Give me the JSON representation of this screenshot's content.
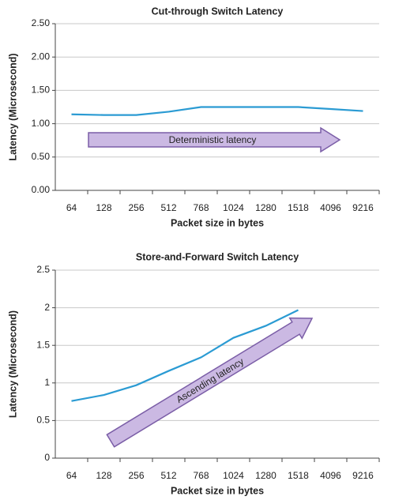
{
  "chart_data": [
    {
      "type": "line",
      "title": "Cut-through Switch Latency",
      "x_label": "Packet size in bytes",
      "y_label": "Latency (Microsecond)",
      "annotation": "Deterministic latency",
      "categories": [
        "64",
        "128",
        "256",
        "512",
        "768",
        "1024",
        "1280",
        "1518",
        "4096",
        "9216"
      ],
      "series": [
        {
          "name": "Cut-through",
          "color": "#2b9bd3",
          "values": [
            1.14,
            1.13,
            1.13,
            1.18,
            1.25,
            1.25,
            1.25,
            1.25,
            1.22,
            1.19
          ]
        }
      ],
      "ylim": [
        0,
        2.5
      ],
      "yticks": [
        {
          "value": 0,
          "label": "0.00"
        },
        {
          "value": 0.5,
          "label": "0.50"
        },
        {
          "value": 1,
          "label": "1.00"
        },
        {
          "value": 1.5,
          "label": "1.50"
        },
        {
          "value": 2,
          "label": "2.00"
        },
        {
          "value": 2.5,
          "label": "2.50"
        }
      ],
      "grid": true
    },
    {
      "type": "line",
      "title": "Store-and-Forward Switch Latency",
      "x_label": "Packet size in bytes",
      "y_label": "Latency (Microsecond)",
      "annotation": "Ascending latency",
      "categories": [
        "64",
        "128",
        "256",
        "512",
        "768",
        "1024",
        "1280",
        "1518",
        "4096",
        "9216"
      ],
      "series": [
        {
          "name": "Store-and-forward",
          "color": "#2b9bd3",
          "values": [
            0.76,
            0.84,
            0.97,
            1.16,
            1.34,
            1.6,
            1.76,
            1.97,
            null,
            null
          ]
        }
      ],
      "ylim": [
        0,
        2.5
      ],
      "yticks": [
        0,
        0.5,
        1,
        1.5,
        2,
        2.5
      ],
      "grid": true
    }
  ]
}
